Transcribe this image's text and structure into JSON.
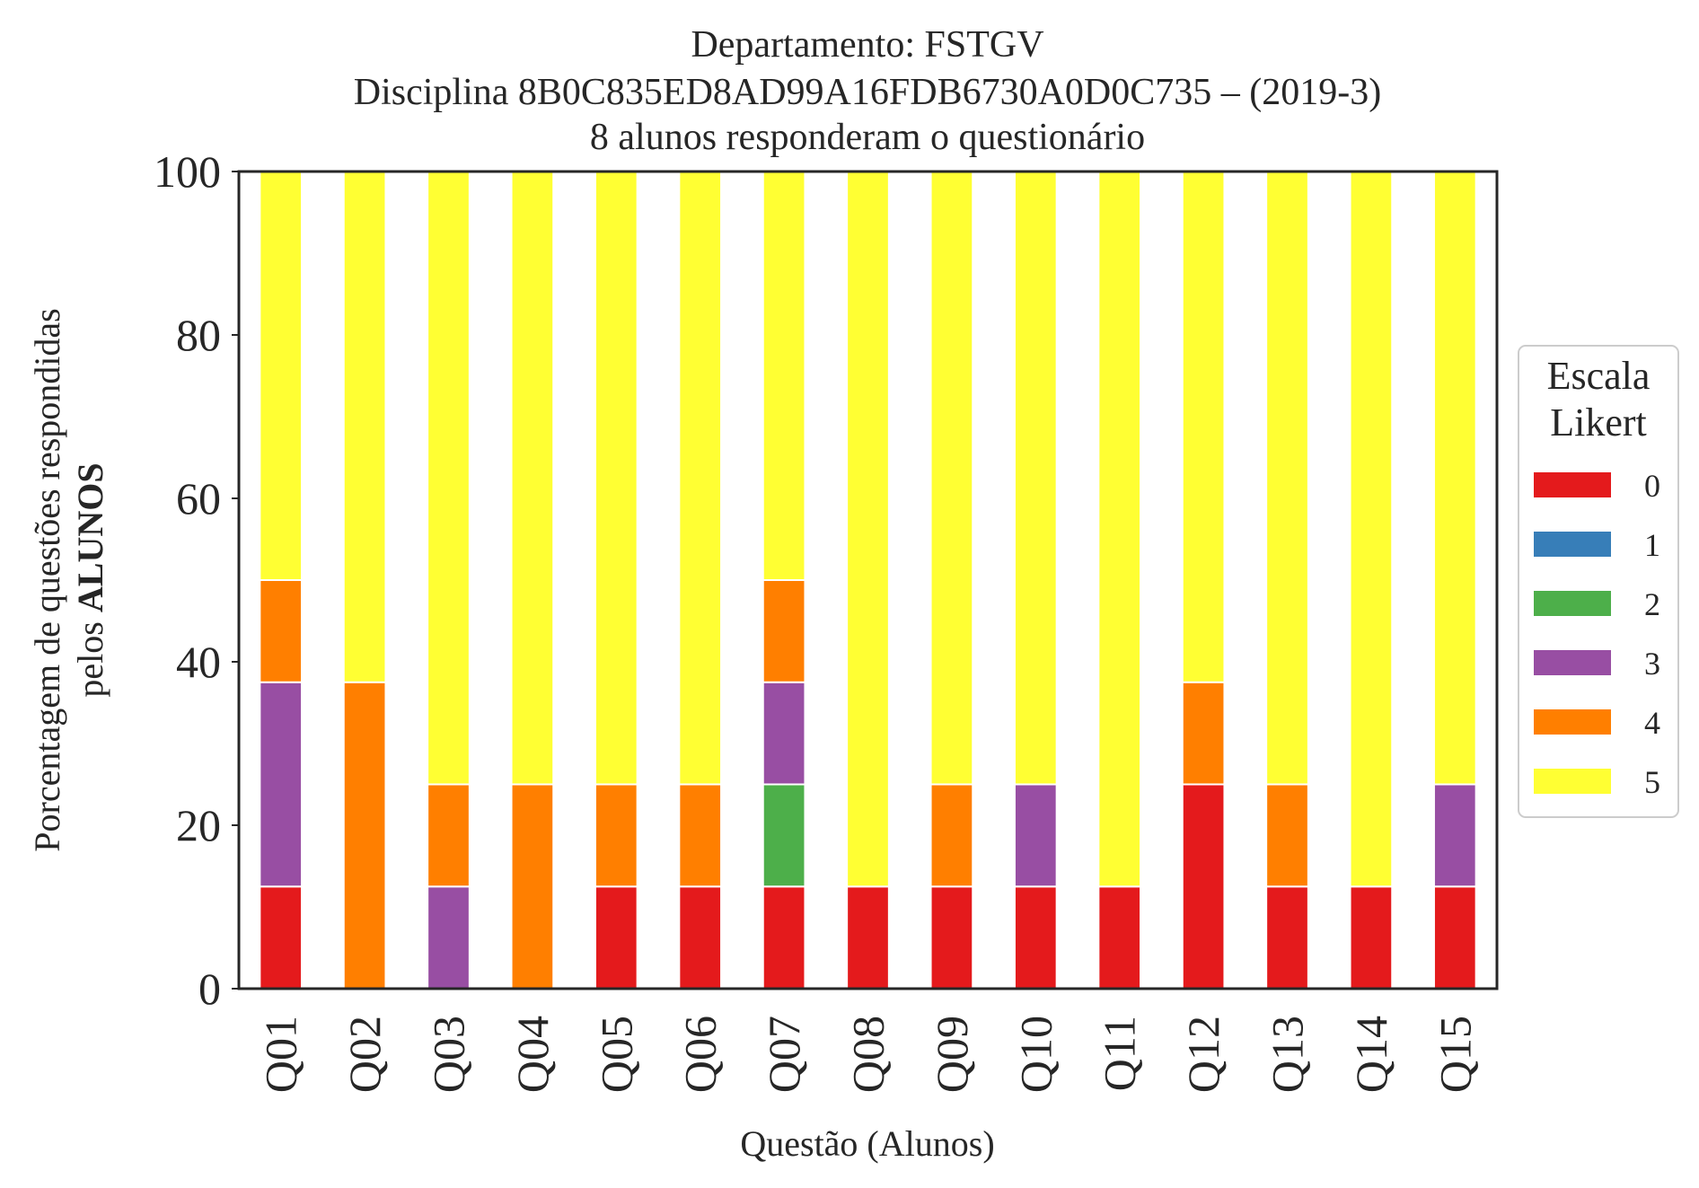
{
  "chart_data": {
    "type": "bar",
    "stacked": true,
    "title": [
      "Departamento: FSTGV",
      "Disciplina 8B0C835ED8AD99A16FDB6730A0D0C735 – (2019-3)",
      "8 alunos responderam o questionário"
    ],
    "xlabel": "Questão (Alunos)",
    "ylabel_line1": "Porcentagem de questões respondidas",
    "ylabel_line2_prefix": "pelos ",
    "ylabel_line2_bold": "ALUNOS",
    "ylim": [
      0,
      100
    ],
    "yticks": [
      "0",
      "20",
      "40",
      "60",
      "80",
      "100"
    ],
    "grid": false,
    "categories": [
      "Q01",
      "Q02",
      "Q03",
      "Q04",
      "Q05",
      "Q06",
      "Q07",
      "Q08",
      "Q09",
      "Q10",
      "Q11",
      "Q12",
      "Q13",
      "Q14",
      "Q15"
    ],
    "series": [
      {
        "name": "0",
        "color": "#e41a1c",
        "values": [
          12.5,
          0,
          0,
          0,
          12.5,
          12.5,
          12.5,
          12.5,
          12.5,
          12.5,
          12.5,
          25,
          12.5,
          12.5,
          12.5
        ]
      },
      {
        "name": "1",
        "color": "#377eb8",
        "values": [
          0,
          0,
          0,
          0,
          0,
          0,
          0,
          0,
          0,
          0,
          0,
          0,
          0,
          0,
          0
        ]
      },
      {
        "name": "2",
        "color": "#4daf4a",
        "values": [
          0,
          0,
          0,
          0,
          0,
          0,
          12.5,
          0,
          0,
          0,
          0,
          0,
          0,
          0,
          0
        ]
      },
      {
        "name": "3",
        "color": "#984ea3",
        "values": [
          25,
          0,
          12.5,
          0,
          0,
          0,
          12.5,
          0,
          0,
          12.5,
          0,
          0,
          0,
          0,
          12.5
        ]
      },
      {
        "name": "4",
        "color": "#ff7f00",
        "values": [
          12.5,
          37.5,
          12.5,
          25,
          12.5,
          12.5,
          12.5,
          0,
          12.5,
          0,
          0,
          12.5,
          12.5,
          0,
          0
        ]
      },
      {
        "name": "5",
        "color": "#ffff33",
        "values": [
          50,
          62.5,
          75,
          75,
          75,
          75,
          50,
          87.5,
          75,
          75,
          87.5,
          62.5,
          75,
          87.5,
          75
        ]
      }
    ],
    "legend": {
      "title": [
        "Escala",
        "Likert"
      ],
      "placement": "right"
    }
  }
}
